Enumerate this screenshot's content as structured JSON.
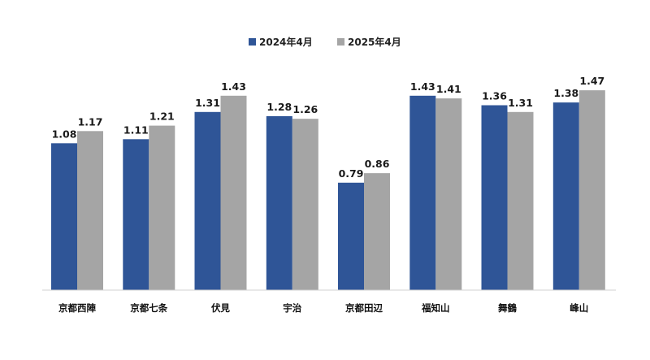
{
  "chart_data": {
    "type": "bar",
    "title": "",
    "xlabel": "",
    "ylabel": "",
    "ylim": [
      0,
      1.6
    ],
    "grid": false,
    "legend_position": "top-center",
    "categories": [
      "京都西陣",
      "京都七条",
      "伏見",
      "宇治",
      "京都田辺",
      "福知山",
      "舞鶴",
      "峰山"
    ],
    "series": [
      {
        "name": "2024年4月",
        "color": "#2f5597",
        "values": [
          1.08,
          1.11,
          1.31,
          1.28,
          0.79,
          1.43,
          1.36,
          1.38
        ],
        "labels": [
          "1.08",
          "1.11",
          "1.31",
          "1.28",
          "0.79",
          "1.43",
          "1.36",
          "1.38"
        ]
      },
      {
        "name": "2025年4月",
        "color": "#a5a5a5",
        "values": [
          1.17,
          1.21,
          1.43,
          1.26,
          0.86,
          1.41,
          1.31,
          1.47
        ],
        "labels": [
          "1.17",
          "1.21",
          "1.43",
          "1.26",
          "0.86",
          "1.41",
          "1.31",
          "1.47"
        ]
      }
    ]
  }
}
